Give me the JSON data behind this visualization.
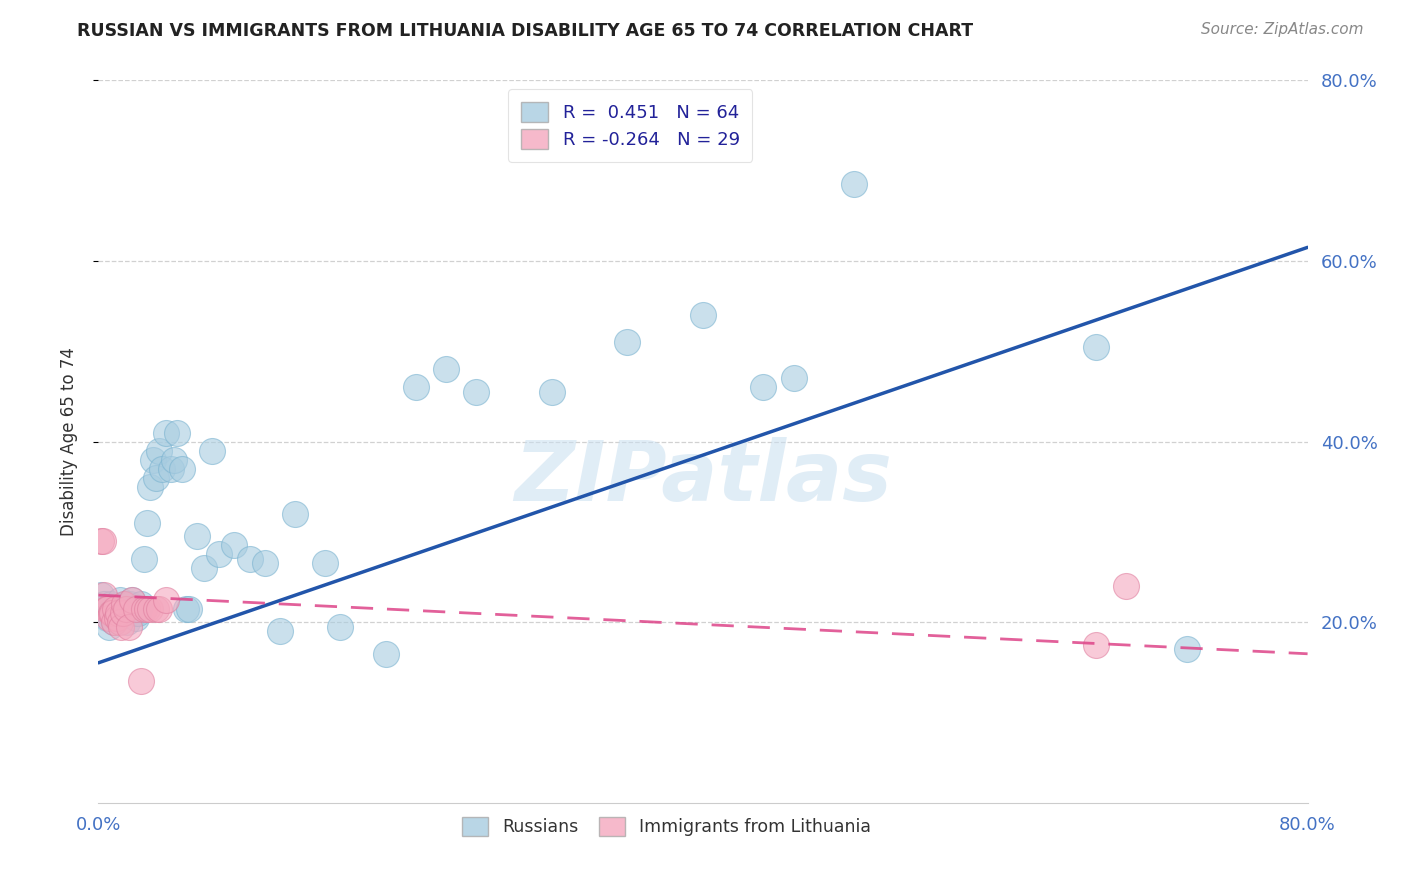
{
  "title": "RUSSIAN VS IMMIGRANTS FROM LITHUANIA DISABILITY AGE 65 TO 74 CORRELATION CHART",
  "source": "Source: ZipAtlas.com",
  "ylabel": "Disability Age 65 to 74",
  "xmin": 0.0,
  "xmax": 0.8,
  "ymin": 0.0,
  "ymax": 0.8,
  "watermark": "ZIPatlas",
  "legend_r1": "R =  0.451   N = 64",
  "legend_r2": "R = -0.264   N = 29",
  "blue_color": "#a8cce0",
  "blue_edge_color": "#7ab3d0",
  "blue_line_color": "#2255aa",
  "pink_color": "#f4a8be",
  "pink_edge_color": "#e080a0",
  "pink_line_color": "#dd4488",
  "blue_scatter_x": [
    0.002,
    0.003,
    0.004,
    0.005,
    0.006,
    0.007,
    0.008,
    0.009,
    0.01,
    0.011,
    0.012,
    0.013,
    0.014,
    0.015,
    0.016,
    0.017,
    0.018,
    0.019,
    0.02,
    0.021,
    0.022,
    0.023,
    0.024,
    0.025,
    0.026,
    0.027,
    0.028,
    0.03,
    0.032,
    0.034,
    0.036,
    0.038,
    0.04,
    0.042,
    0.045,
    0.048,
    0.05,
    0.052,
    0.055,
    0.058,
    0.06,
    0.065,
    0.07,
    0.075,
    0.08,
    0.09,
    0.1,
    0.11,
    0.12,
    0.13,
    0.15,
    0.16,
    0.19,
    0.21,
    0.23,
    0.25,
    0.3,
    0.35,
    0.4,
    0.44,
    0.46,
    0.5,
    0.66,
    0.72
  ],
  "blue_scatter_y": [
    0.23,
    0.215,
    0.22,
    0.21,
    0.205,
    0.195,
    0.22,
    0.215,
    0.2,
    0.21,
    0.215,
    0.205,
    0.225,
    0.21,
    0.215,
    0.215,
    0.22,
    0.2,
    0.215,
    0.22,
    0.225,
    0.215,
    0.21,
    0.205,
    0.21,
    0.215,
    0.22,
    0.27,
    0.31,
    0.35,
    0.38,
    0.36,
    0.39,
    0.37,
    0.41,
    0.37,
    0.38,
    0.41,
    0.37,
    0.215,
    0.215,
    0.295,
    0.26,
    0.39,
    0.275,
    0.285,
    0.27,
    0.265,
    0.19,
    0.32,
    0.265,
    0.195,
    0.165,
    0.46,
    0.48,
    0.455,
    0.455,
    0.51,
    0.54,
    0.46,
    0.47,
    0.685,
    0.505,
    0.17
  ],
  "pink_scatter_x": [
    0.002,
    0.003,
    0.004,
    0.005,
    0.006,
    0.007,
    0.008,
    0.009,
    0.01,
    0.011,
    0.012,
    0.013,
    0.014,
    0.015,
    0.016,
    0.017,
    0.018,
    0.02,
    0.022,
    0.025,
    0.028,
    0.03,
    0.032,
    0.034,
    0.038,
    0.04,
    0.045,
    0.66,
    0.68
  ],
  "pink_scatter_y": [
    0.29,
    0.29,
    0.23,
    0.215,
    0.215,
    0.205,
    0.21,
    0.21,
    0.2,
    0.215,
    0.205,
    0.21,
    0.2,
    0.195,
    0.21,
    0.22,
    0.215,
    0.195,
    0.225,
    0.215,
    0.135,
    0.215,
    0.215,
    0.215,
    0.215,
    0.215,
    0.225,
    0.175,
    0.24
  ],
  "blue_line_x0": 0.0,
  "blue_line_y0": 0.155,
  "blue_line_x1": 0.8,
  "blue_line_y1": 0.615,
  "pink_line_x0": 0.0,
  "pink_line_y0": 0.23,
  "pink_line_x1": 0.8,
  "pink_line_y1": 0.165
}
